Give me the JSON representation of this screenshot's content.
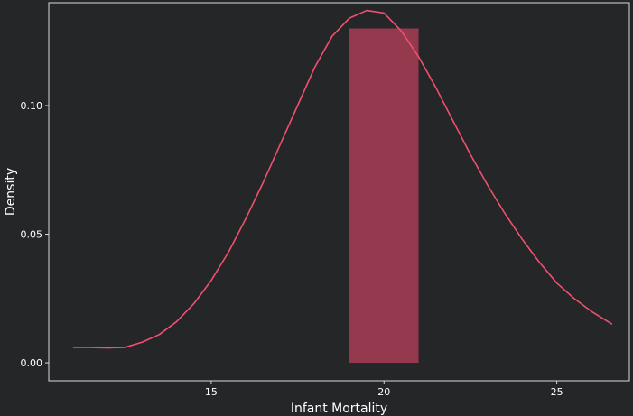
{
  "chart_data": {
    "type": "bar",
    "title": "",
    "xlabel": "Infant Mortality",
    "ylabel": "Density",
    "xlim": [
      10.3,
      27.1
    ],
    "ylim": [
      -0.007,
      0.14
    ],
    "x_ticks": [
      15,
      20,
      25
    ],
    "x_tick_labels": [
      "15",
      "20",
      "25"
    ],
    "y_ticks": [
      0.0,
      0.05,
      0.1
    ],
    "y_tick_labels": [
      "0.00",
      "0.05",
      "0.10"
    ],
    "grid": false,
    "bars": [
      {
        "x_start": 19.0,
        "x_end": 21.0,
        "density": 0.13
      }
    ],
    "density_curve": {
      "x": [
        11.0,
        11.5,
        12.0,
        12.5,
        13.0,
        13.5,
        14.0,
        14.5,
        15.0,
        15.5,
        16.0,
        16.5,
        17.0,
        17.5,
        18.0,
        18.5,
        19.0,
        19.5,
        20.0,
        20.5,
        21.0,
        21.5,
        22.0,
        22.5,
        23.0,
        23.5,
        24.0,
        24.5,
        25.0,
        25.5,
        26.0,
        26.6
      ],
      "y": [
        0.006,
        0.006,
        0.0058,
        0.006,
        0.008,
        0.011,
        0.016,
        0.023,
        0.032,
        0.043,
        0.056,
        0.07,
        0.085,
        0.1,
        0.115,
        0.127,
        0.134,
        0.137,
        0.136,
        0.129,
        0.119,
        0.107,
        0.094,
        0.081,
        0.069,
        0.058,
        0.048,
        0.039,
        0.031,
        0.025,
        0.02,
        0.015
      ]
    },
    "colors": {
      "background": "#252628",
      "panel_border": "#d9d9d9",
      "bar_fill": "#953a4e",
      "curve": "#f0506e",
      "text": "#ffffff"
    }
  }
}
